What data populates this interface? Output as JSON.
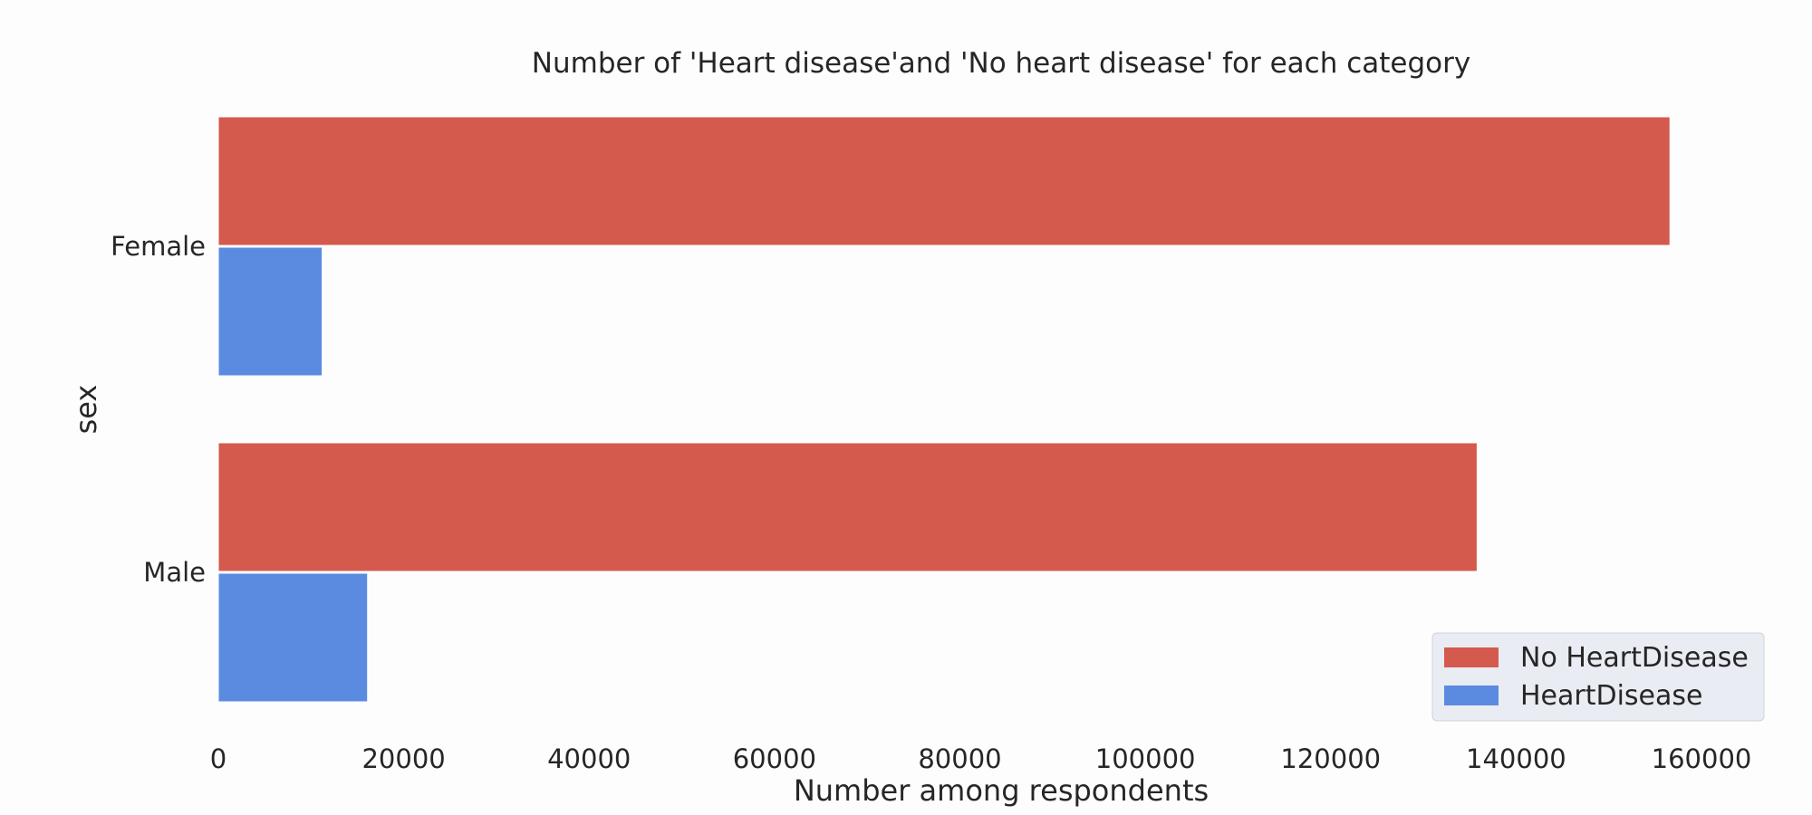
{
  "chart_data": {
    "type": "bar",
    "orientation": "horizontal",
    "title": "Number of 'Heart disease'and 'No heart disease' for each category",
    "xlabel": "Number among respondents",
    "ylabel": "sex",
    "categories": [
      "Female",
      "Male"
    ],
    "series": [
      {
        "name": "No HeartDisease",
        "values": [
          156600,
          135800
        ],
        "color": "#d35a4d"
      },
      {
        "name": "HeartDisease",
        "values": [
          11200,
          16100
        ],
        "color": "#5b8be0"
      }
    ],
    "xlim": [
      0,
      160000
    ],
    "xticks": [
      "0",
      "20000",
      "40000",
      "60000",
      "80000",
      "100000",
      "120000",
      "140000",
      "160000"
    ],
    "grid": false,
    "legend": {
      "position": "bottom-right",
      "background": "#eaecf3"
    }
  }
}
